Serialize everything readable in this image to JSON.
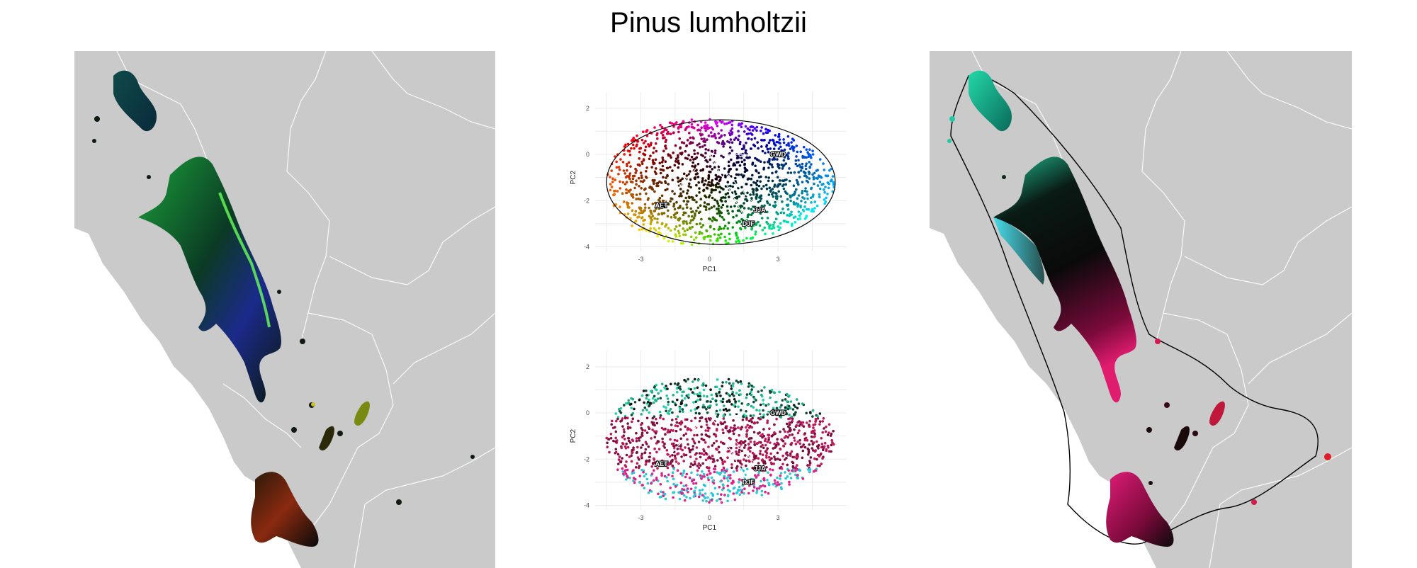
{
  "title": "Pinus lumholtzii",
  "chart_data": [
    {
      "type": "map",
      "panel": "left",
      "description_colors": [
        "#0a2a1a",
        "#1f8f2f",
        "#5ee04a",
        "#2a2aa8",
        "#c8281e",
        "#e0d060"
      ]
    },
    {
      "type": "scatter",
      "panel": "top-center",
      "xlabel": "PC1",
      "ylabel": "PC2",
      "x_ticks": [
        "-3",
        "0",
        "3"
      ],
      "y_ticks": [
        "2",
        "0",
        "-2",
        "-4"
      ],
      "xlim": [
        -5,
        6
      ],
      "ylim": [
        -4.2,
        2.7
      ],
      "origin": [
        0,
        0
      ],
      "vectors": [
        {
          "label": "GWD",
          "x": 3.0,
          "y": 0.0
        },
        {
          "label": "AET",
          "x": -2.1,
          "y": -2.2
        },
        {
          "label": "JJA",
          "x": 2.2,
          "y": -2.4
        },
        {
          "label": "DJF",
          "x": 1.7,
          "y": -3.0
        }
      ]
    },
    {
      "type": "scatter",
      "panel": "bottom-center",
      "xlabel": "PC1",
      "ylabel": "PC2",
      "x_ticks": [
        "-3",
        "0",
        "3"
      ],
      "y_ticks": [
        "2",
        "0",
        "-2",
        "-4"
      ],
      "xlim": [
        -5,
        6
      ],
      "ylim": [
        -4.2,
        2.7
      ],
      "origin": [
        0,
        0
      ],
      "vectors": [
        {
          "label": "GWD",
          "x": 3.0,
          "y": 0.0
        },
        {
          "label": "AET",
          "x": -2.1,
          "y": -2.2
        },
        {
          "label": "JJA",
          "x": 2.2,
          "y": -2.4
        },
        {
          "label": "DJF",
          "x": 1.7,
          "y": -3.0
        }
      ]
    },
    {
      "type": "map",
      "panel": "right",
      "description_colors": [
        "#0a1a14",
        "#1fd2a0",
        "#20d8e0",
        "#e01c6e",
        "#d81020",
        "#6a10a8"
      ]
    }
  ]
}
